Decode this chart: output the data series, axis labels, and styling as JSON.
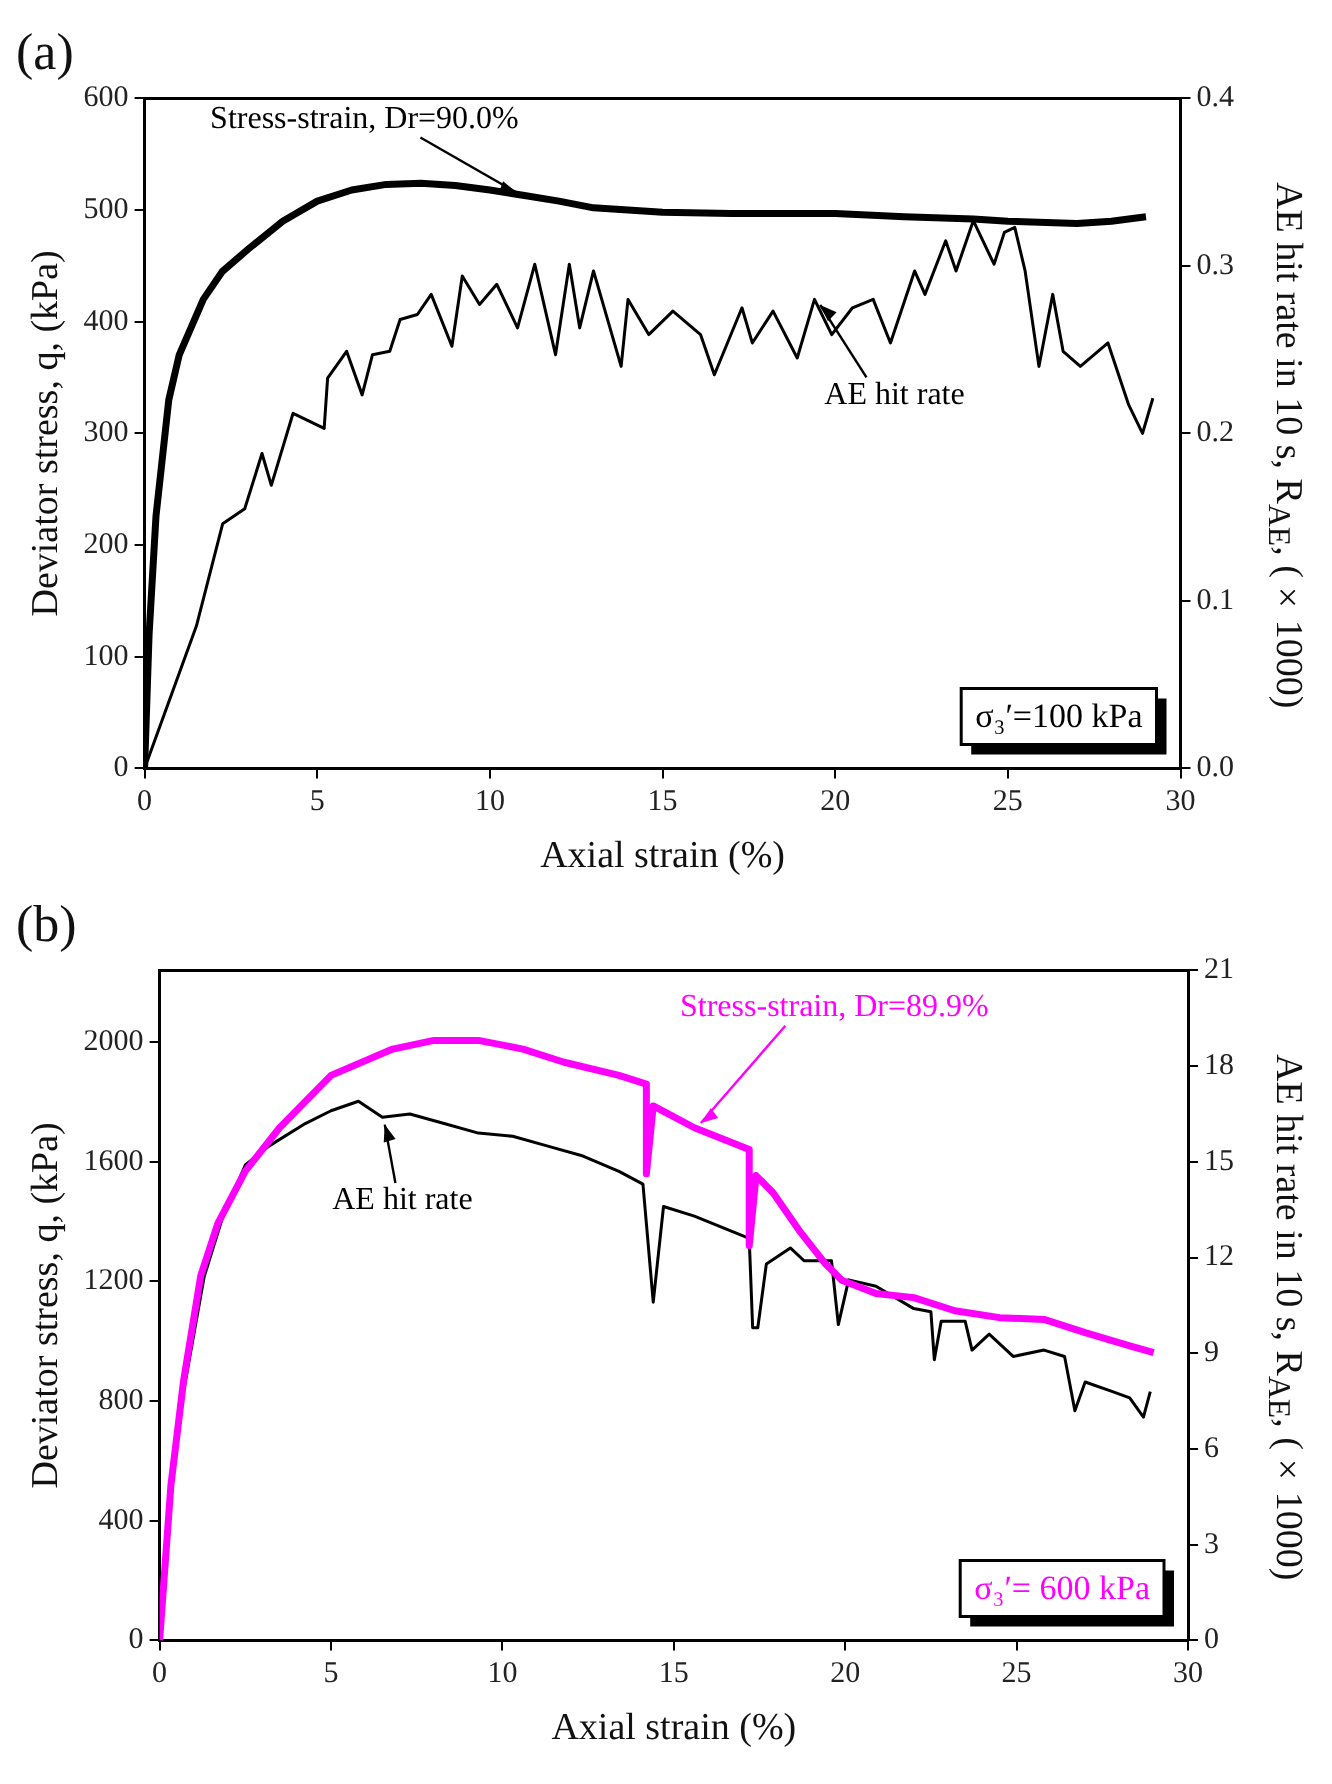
{
  "chart_data": [
    {
      "type": "line",
      "title": "(a)",
      "xlabel": "Axial strain (%)",
      "ylabel": "Deviator stress, q, (kPa)",
      "y2label": "AE hit rate in 10 s, R$_{AE}$, (×1000)",
      "xlim": [
        0,
        30
      ],
      "xticks": [
        0,
        5,
        10,
        15,
        20,
        25,
        30
      ],
      "ylim": [
        0,
        600
      ],
      "yticks": [
        0,
        100,
        200,
        300,
        400,
        500,
        600
      ],
      "y2lim": [
        0,
        0.4
      ],
      "y2ticks": [
        {
          "value": 0,
          "label": "0.0"
        },
        0.1,
        0.2,
        0.3,
        0.4
      ],
      "grid": false,
      "legend": false,
      "annotations": [
        "σ₃′=100 kPa",
        {
          "text": "Stress-strain, Dr=90.0%",
          "x": 11,
          "y": 513
        },
        {
          "text": "AE hit rate",
          "x": 19.4,
          "y": 420
        }
      ],
      "series": [
        {
          "color": "#000000",
          "x": [
            0,
            0.13,
            0.33,
            0.7,
            1,
            1.7,
            2.25,
            3,
            4,
            5,
            6,
            7,
            8,
            9,
            10,
            11,
            12,
            13,
            14,
            15,
            17,
            20,
            22,
            24,
            25,
            27,
            28,
            29
          ],
          "values": [
            0,
            120,
            226,
            330,
            370,
            420,
            445,
            465,
            490,
            508,
            518,
            523,
            524,
            522,
            518,
            513,
            508,
            502,
            500,
            498,
            497,
            497,
            494,
            492,
            490,
            488,
            490,
            494
          ]
        },
        {
          "color": "#000000",
          "axis": "y2",
          "x": [
            0,
            1.5,
            2.26,
            2.9,
            3.4,
            3.67,
            4.3,
            5.2,
            5.3,
            5.85,
            6.3,
            6.6,
            7.1,
            7.4,
            7.9,
            8.3,
            8.9,
            9.2,
            9.7,
            10.2,
            10.8,
            11.3,
            11.9,
            12.3,
            12.6,
            13,
            13.8,
            14,
            14.6,
            15.3,
            16.1,
            16.5,
            17.3,
            17.6,
            18.2,
            18.9,
            19.4,
            19.9,
            20.5,
            21.1,
            21.6,
            22.3,
            22.6,
            23.2,
            23.5,
            24,
            24.6,
            24.9,
            25.2,
            25.5,
            25.9,
            26.3,
            26.6,
            27.1,
            27.9,
            28.5,
            28.9,
            29.2
          ],
          "values": [
            0,
            0.085,
            0.146,
            0.155,
            0.188,
            0.169,
            0.212,
            0.203,
            0.233,
            0.249,
            0.223,
            0.247,
            0.249,
            0.268,
            0.271,
            0.283,
            0.252,
            0.294,
            0.277,
            0.289,
            0.263,
            0.301,
            0.247,
            0.301,
            0.263,
            0.297,
            0.24,
            0.28,
            0.259,
            0.273,
            0.259,
            0.235,
            0.275,
            0.254,
            0.273,
            0.245,
            0.28,
            0.259,
            0.275,
            0.28,
            0.254,
            0.297,
            0.283,
            0.315,
            0.297,
            0.327,
            0.301,
            0.32,
            0.323,
            0.297,
            0.24,
            0.283,
            0.249,
            0.24,
            0.254,
            0.217,
            0.2,
            0.221
          ]
        }
      ]
    },
    {
      "type": "line",
      "title": "(b)",
      "xlabel": "Axial strain (%)",
      "ylabel": "Deviator stress, q, (kPa)",
      "y2label": "AE hit rate in 10 s, R$_{AE}$, (×1000)",
      "xlim": [
        0,
        30
      ],
      "xticks": [
        0,
        5,
        10,
        15,
        20,
        25,
        30
      ],
      "ylim": [
        0,
        2240
      ],
      "yticks": [
        0,
        400,
        800,
        1200,
        1600,
        2000
      ],
      "y2lim": [
        0,
        21
      ],
      "y2ticks": [
        0,
        3,
        6,
        9,
        12,
        15,
        18,
        21
      ],
      "grid": false,
      "legend": false,
      "annotations": [
        "σ₃′= 600 kPa",
        {
          "text": "Stress-strain, Dr=89.9%",
          "x": 15.6,
          "y": 1714
        },
        {
          "text": "AE hit rate",
          "x": 6.5,
          "y": 1750
        }
      ],
      "series": [
        {
          "color": "#ff00ff",
          "x": [
            0,
            0.33,
            0.7,
            1.2,
            1.7,
            2.5,
            3.5,
            5,
            6.8,
            8,
            9.3,
            10.6,
            11.8,
            13.4,
            14.2,
            14.2,
            14.4,
            15.6,
            17.2,
            17.2,
            17.4,
            17.9,
            18.7,
            19.4,
            19.9,
            20.9,
            22,
            23.2,
            24.5,
            25.8,
            27,
            28.3,
            29
          ],
          "values": [
            0,
            519,
            869,
            1219,
            1394,
            1569,
            1714,
            1889,
            1977,
            2006,
            2006,
            1977,
            1933,
            1889,
            1860,
            1560,
            1787,
            1714,
            1641,
            1320,
            1554,
            1496,
            1364,
            1262,
            1204,
            1160,
            1146,
            1102,
            1079,
            1073,
            1029,
            985,
            962
          ]
        },
        {
          "color": "#000000",
          "axis": "y2",
          "x": [
            0,
            0.33,
            0.7,
            1.3,
            1.85,
            2.5,
            3.2,
            4.25,
            5,
            5.8,
            6.5,
            7.3,
            8.3,
            9.3,
            10.3,
            11.3,
            12.3,
            13.4,
            14.1,
            14.4,
            14.7,
            15.6,
            17.2,
            17.3,
            17.45,
            17.7,
            18.4,
            18.8,
            19.6,
            19.8,
            20.1,
            20.9,
            22,
            22.5,
            22.6,
            22.8,
            23.5,
            23.7,
            24.2,
            24.9,
            25.8,
            26.4,
            26.7,
            27,
            27.8,
            28.3,
            28.7,
            28.9
          ],
          "values": [
            0,
            4.6,
            7.8,
            11.4,
            13.3,
            14.9,
            15.5,
            16.2,
            16.6,
            16.9,
            16.4,
            16.5,
            16.2,
            15.9,
            15.8,
            15.5,
            15.2,
            14.7,
            14.3,
            10.6,
            13.6,
            13.3,
            12.6,
            9.8,
            9.8,
            11.8,
            12.3,
            11.9,
            11.9,
            9.9,
            11.3,
            11.1,
            10.4,
            10.3,
            8.8,
            10,
            10,
            9.1,
            9.6,
            8.9,
            9.1,
            8.9,
            7.2,
            8.1,
            7.8,
            7.6,
            7,
            7.8
          ]
        }
      ]
    }
  ]
}
